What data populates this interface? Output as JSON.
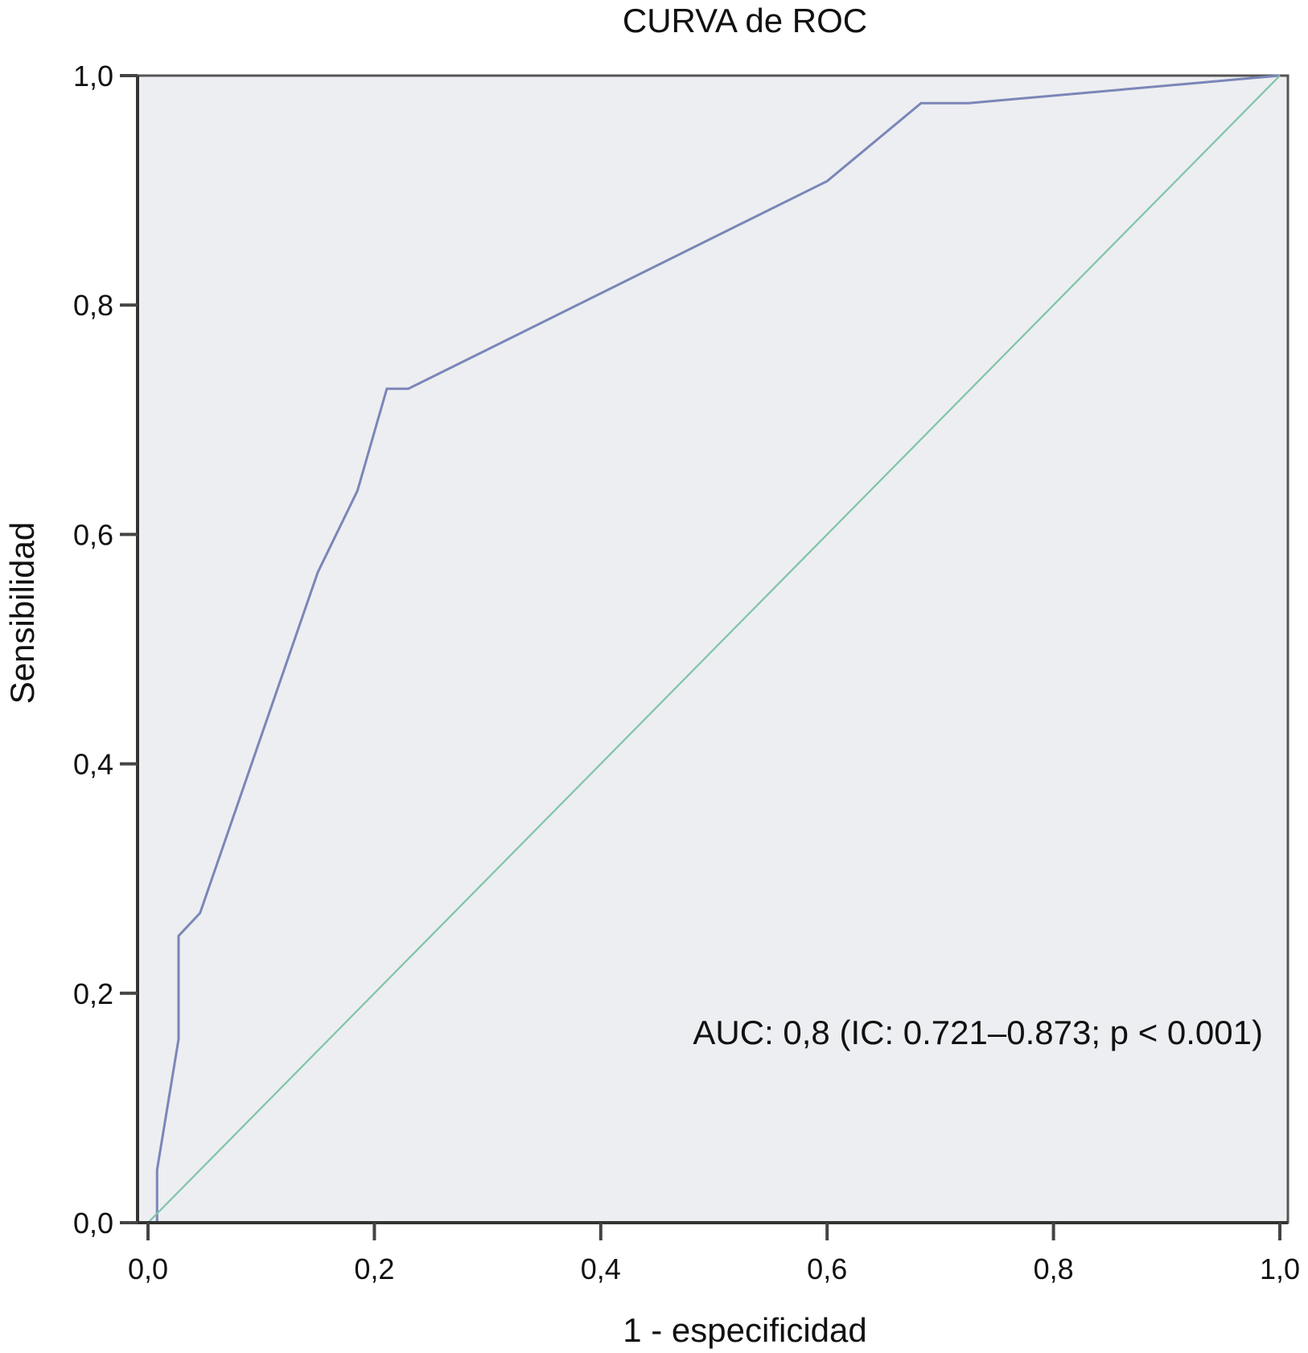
{
  "chart_data": {
    "type": "line",
    "title": "CURVA de ROC",
    "xlabel": "1 - especificidad",
    "ylabel": "Sensibilidad",
    "xlim": [
      0,
      1
    ],
    "ylim": [
      0,
      1
    ],
    "xticks": [
      "0,0",
      "0,2",
      "0,4",
      "0,6",
      "0,8",
      "1,0"
    ],
    "yticks": [
      "0,0",
      "0,2",
      "0,4",
      "0,6",
      "0,8",
      "1,0"
    ],
    "grid": false,
    "background": "#eceef1",
    "annotation": "AUC: 0,8 (IC: 0.721–0.873; p < 0.001)",
    "series": [
      {
        "color": "#7b86b8",
        "x": [
          0.008,
          0.008,
          0.027,
          0.027,
          0.046,
          0.15,
          0.185,
          0.211,
          0.23,
          0.6,
          0.683,
          0.725,
          1.0
        ],
        "y": [
          0.0,
          0.046,
          0.16,
          0.25,
          0.27,
          0.567,
          0.638,
          0.727,
          0.727,
          0.908,
          0.976,
          0.976,
          1.0
        ]
      },
      {
        "color": "#7fc4a8",
        "x": [
          0.0,
          1.0
        ],
        "y": [
          0.0,
          1.0
        ]
      }
    ]
  }
}
